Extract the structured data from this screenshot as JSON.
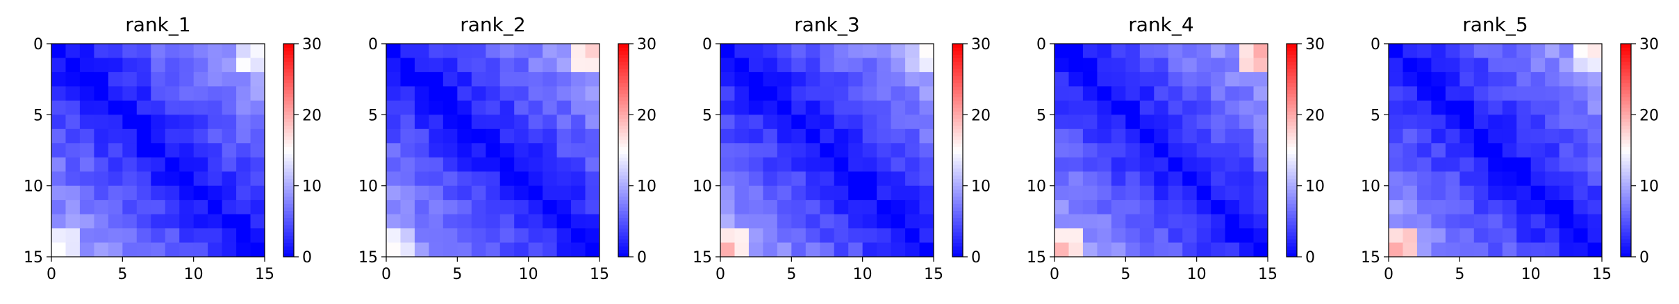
{
  "chart_data": [
    {
      "type": "heatmap",
      "title": "rank_1",
      "size": 15,
      "vmin": 0,
      "vmax": 30,
      "colormap": "bwr",
      "diag_value": 0,
      "far_value": 10,
      "corner_value": 15,
      "bottom_left_value": 15,
      "x_ticks": [
        "0",
        "5",
        "10",
        "15"
      ],
      "y_ticks": [
        "0",
        "5",
        "10",
        "15"
      ],
      "colorbar_ticks": [
        "0",
        "10",
        "20",
        "30"
      ]
    },
    {
      "type": "heatmap",
      "title": "rank_2",
      "size": 15,
      "vmin": 0,
      "vmax": 30,
      "colormap": "bwr",
      "diag_value": 0,
      "far_value": 10,
      "corner_value": 18,
      "bottom_left_value": 14,
      "x_ticks": [
        "0",
        "5",
        "10",
        "15"
      ],
      "y_ticks": [
        "0",
        "5",
        "10",
        "15"
      ],
      "colorbar_ticks": [
        "0",
        "10",
        "20",
        "30"
      ]
    },
    {
      "type": "heatmap",
      "title": "rank_3",
      "size": 15,
      "vmin": 0,
      "vmax": 30,
      "colormap": "bwr",
      "diag_value": 0,
      "far_value": 10,
      "corner_value": 14,
      "bottom_left_value": 19,
      "x_ticks": [
        "0",
        "5",
        "10",
        "15"
      ],
      "y_ticks": [
        "0",
        "5",
        "10",
        "15"
      ],
      "colorbar_ticks": [
        "0",
        "10",
        "20",
        "30"
      ]
    },
    {
      "type": "heatmap",
      "title": "rank_4",
      "size": 15,
      "vmin": 0,
      "vmax": 30,
      "colormap": "bwr",
      "diag_value": 0,
      "far_value": 10,
      "corner_value": 21,
      "bottom_left_value": 19,
      "x_ticks": [
        "0",
        "5",
        "10",
        "15"
      ],
      "y_ticks": [
        "0",
        "5",
        "10",
        "15"
      ],
      "colorbar_ticks": [
        "0",
        "10",
        "20",
        "30"
      ]
    },
    {
      "type": "heatmap",
      "title": "rank_5",
      "size": 15,
      "vmin": 0,
      "vmax": 30,
      "colormap": "bwr",
      "diag_value": 0,
      "far_value": 10,
      "corner_value": 16,
      "bottom_left_value": 20,
      "x_ticks": [
        "0",
        "5",
        "10",
        "15"
      ],
      "y_ticks": [
        "0",
        "5",
        "10",
        "15"
      ],
      "colorbar_ticks": [
        "0",
        "10",
        "20",
        "30"
      ]
    }
  ]
}
